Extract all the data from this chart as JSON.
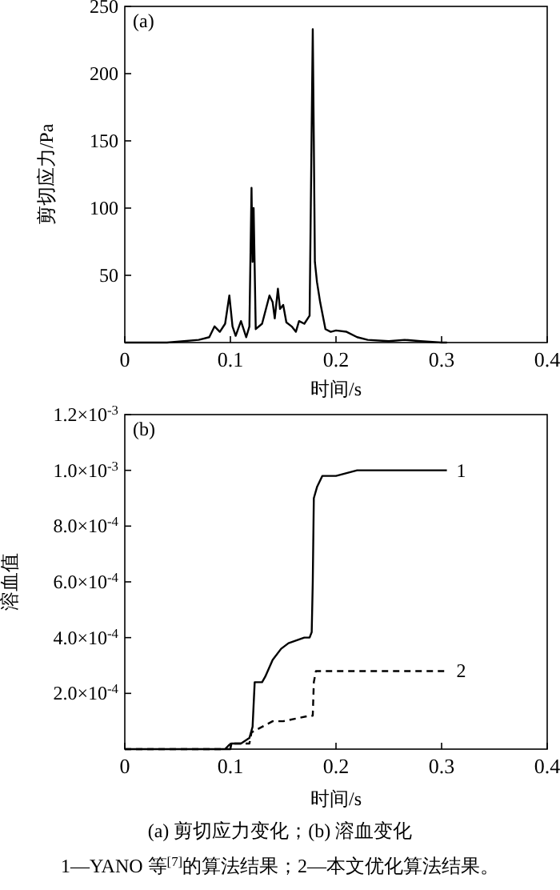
{
  "chart_data": [
    {
      "type": "line",
      "title": "(a)",
      "xlabel": "时间/s",
      "ylabel": "剪切应力/Pa",
      "xlim": [
        0,
        0.4
      ],
      "ylim": [
        0,
        250
      ],
      "xticks": [
        0,
        0.1,
        0.2,
        0.3,
        0.4
      ],
      "yticks": [
        50,
        100,
        150,
        200,
        250
      ],
      "grid": false,
      "marker": "none",
      "series": [
        {
          "color": "#000000",
          "line_style": "solid",
          "x": [
            0,
            0.04,
            0.07,
            0.08,
            0.085,
            0.09,
            0.095,
            0.099,
            0.102,
            0.105,
            0.11,
            0.115,
            0.118,
            0.12,
            0.121,
            0.122,
            0.124,
            0.13,
            0.137,
            0.14,
            0.142,
            0.145,
            0.147,
            0.15,
            0.153,
            0.158,
            0.162,
            0.165,
            0.17,
            0.175,
            0.178,
            0.179,
            0.18,
            0.182,
            0.185,
            0.19,
            0.195,
            0.2,
            0.21,
            0.22,
            0.23,
            0.25,
            0.265,
            0.28,
            0.3,
            0.305
          ],
          "values": [
            0,
            0,
            2,
            4,
            12,
            8,
            14,
            35,
            12,
            5,
            16,
            4,
            12,
            115,
            60,
            100,
            10,
            14,
            35,
            30,
            18,
            40,
            25,
            28,
            15,
            12,
            8,
            16,
            14,
            20,
            233,
            150,
            60,
            45,
            30,
            10,
            8,
            9,
            8,
            4,
            2,
            1,
            2,
            1,
            0,
            0
          ]
        }
      ]
    },
    {
      "type": "line",
      "title": "(b)",
      "xlabel": "时间/s",
      "ylabel": "溶血值",
      "xlim": [
        0,
        0.4
      ],
      "ylim": [
        0,
        0.0012
      ],
      "xticks": [
        0,
        0.1,
        0.2,
        0.3,
        0.4
      ],
      "grid": false,
      "marker": "none",
      "yticks": [
        {
          "value": 0.0002,
          "label": "2.0×10$^{-4}$"
        },
        {
          "value": 0.0004,
          "label": "4.0×10$^{-4}$"
        },
        {
          "value": 0.0006,
          "label": "6.0×10$^{-4}$"
        },
        {
          "value": 0.0008,
          "label": "8.0×10$^{-4}$"
        },
        {
          "value": 0.001,
          "label": "1.0×10$^{-3}$"
        },
        {
          "value": 0.0012,
          "label": "1.2×10$^{-3}$"
        }
      ],
      "series": [
        {
          "name": "1",
          "color": "#000000",
          "line_style": "solid",
          "x": [
            0,
            0.08,
            0.09,
            0.1,
            0.101,
            0.11,
            0.118,
            0.121,
            0.123,
            0.13,
            0.133,
            0.14,
            0.148,
            0.155,
            0.17,
            0.175,
            0.177,
            0.178,
            0.179,
            0.182,
            0.187,
            0.2,
            0.22,
            0.305
          ],
          "values": [
            0,
            0,
            0,
            0,
            2e-05,
            2e-05,
            4e-05,
            8e-05,
            0.00024,
            0.00024,
            0.00026,
            0.00032,
            0.00036,
            0.00038,
            0.0004,
            0.0004,
            0.00042,
            0.0006,
            0.0009,
            0.00094,
            0.00098,
            0.00098,
            0.001,
            0.001
          ]
        },
        {
          "name": "2",
          "color": "#000000",
          "line_style": "dashed",
          "x": [
            0,
            0.095,
            0.1,
            0.11,
            0.118,
            0.12,
            0.13,
            0.14,
            0.15,
            0.175,
            0.178,
            0.179,
            0.181,
            0.305
          ],
          "values": [
            0,
            0,
            2e-05,
            2e-05,
            2e-05,
            6e-05,
            8e-05,
            0.0001,
            0.0001,
            0.00012,
            0.00012,
            0.00024,
            0.00028,
            0.00028
          ]
        }
      ],
      "annotations": [
        "(a) 剪切应力变化；(b) 溶血变化",
        "1—YANO 等$^{[7]}$的算法结果；2—本文优化算法结果。"
      ]
    }
  ]
}
